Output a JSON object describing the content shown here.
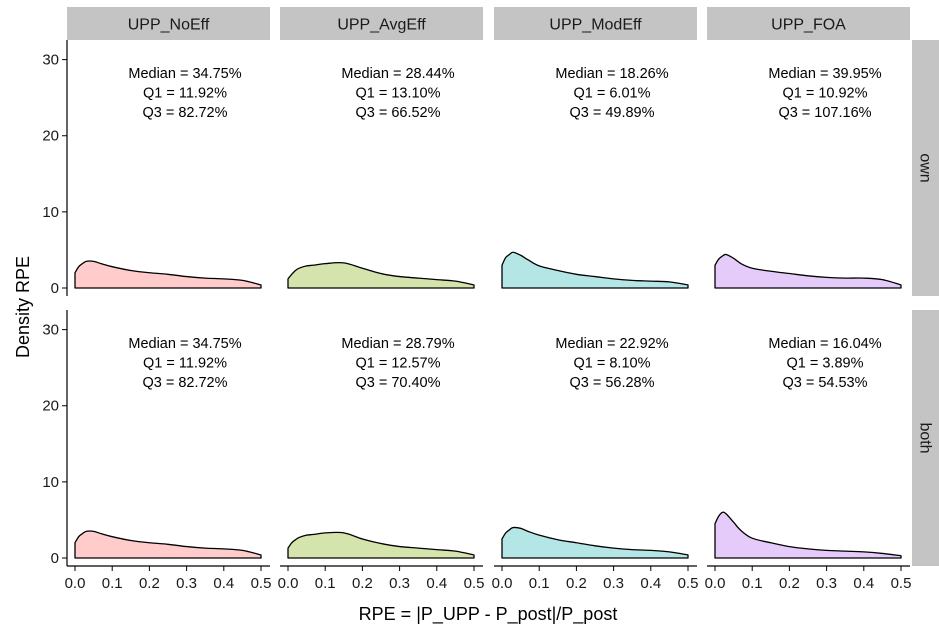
{
  "chart_data": {
    "type": "area",
    "xlabel": "RPE = |P_UPP - P_post|/P_post",
    "ylabel": "Density RPE",
    "xlim": [
      0,
      0.5
    ],
    "ylim": [
      0,
      31
    ],
    "x_ticks": [
      0.0,
      0.1,
      0.2,
      0.3,
      0.4,
      0.5
    ],
    "x_tick_labels": [
      "0.0",
      "0.1",
      "0.2",
      "0.3",
      "0.4",
      "0.5"
    ],
    "y_ticks": [
      0,
      10,
      20,
      30
    ],
    "y_tick_labels": [
      "0",
      "10",
      "20",
      "30"
    ],
    "grid": false,
    "legend": "none",
    "columns": [
      "UPP_NoEff",
      "UPP_AvgEff",
      "UPP_ModEff",
      "UPP_FOA"
    ],
    "rows": [
      "own",
      "both"
    ],
    "column_colors": [
      "#FFCCCB",
      "#D4E4AC",
      "#B4E6E5",
      "#E5CBFA"
    ],
    "outline_color": "#000000",
    "x": [
      0.0,
      0.01,
      0.02,
      0.03,
      0.05,
      0.07,
      0.1,
      0.15,
      0.2,
      0.25,
      0.3,
      0.35,
      0.4,
      0.45,
      0.5
    ],
    "panels": [
      {
        "row": "own",
        "column": "UPP_NoEff",
        "annotation": [
          "Median = 34.75%",
          "Q1 = 11.92%",
          "Q3 = 82.72%"
        ],
        "density": [
          2.0,
          2.8,
          3.2,
          3.5,
          3.5,
          3.2,
          2.8,
          2.3,
          2.0,
          1.8,
          1.5,
          1.3,
          1.2,
          1.0,
          0.4
        ]
      },
      {
        "row": "own",
        "column": "UPP_AvgEff",
        "annotation": [
          "Median = 28.44%",
          "Q1 = 13.10%",
          "Q3 = 66.52%"
        ],
        "density": [
          1.2,
          1.8,
          2.3,
          2.6,
          2.9,
          3.0,
          3.2,
          3.3,
          2.6,
          1.9,
          1.5,
          1.3,
          1.1,
          0.9,
          0.4
        ]
      },
      {
        "row": "own",
        "column": "UPP_ModEff",
        "annotation": [
          "Median = 18.26%",
          "Q1 = 6.01%",
          "Q3 = 49.89%"
        ],
        "density": [
          3.0,
          4.0,
          4.4,
          4.7,
          4.3,
          3.7,
          2.9,
          2.3,
          1.8,
          1.5,
          1.2,
          1.0,
          0.9,
          0.8,
          0.4
        ]
      },
      {
        "row": "own",
        "column": "UPP_FOA",
        "annotation": [
          "Median = 39.95%",
          "Q1 = 10.92%",
          "Q3 = 107.16%"
        ],
        "density": [
          3.0,
          3.8,
          4.2,
          4.4,
          3.9,
          3.2,
          2.6,
          2.2,
          1.9,
          1.6,
          1.4,
          1.3,
          1.3,
          1.1,
          0.4
        ]
      },
      {
        "row": "both",
        "column": "UPP_NoEff",
        "annotation": [
          "Median = 34.75%",
          "Q1 = 11.92%",
          "Q3 = 82.72%"
        ],
        "density": [
          2.0,
          2.8,
          3.2,
          3.5,
          3.5,
          3.2,
          2.8,
          2.3,
          2.0,
          1.8,
          1.5,
          1.3,
          1.2,
          1.0,
          0.4
        ]
      },
      {
        "row": "both",
        "column": "UPP_AvgEff",
        "annotation": [
          "Median = 28.79%",
          "Q1 = 12.57%",
          "Q3 = 70.40%"
        ],
        "density": [
          1.3,
          2.0,
          2.4,
          2.7,
          3.0,
          3.1,
          3.3,
          3.3,
          2.5,
          1.9,
          1.5,
          1.3,
          1.1,
          0.9,
          0.4
        ]
      },
      {
        "row": "both",
        "column": "UPP_ModEff",
        "annotation": [
          "Median = 22.92%",
          "Q1 = 8.10%",
          "Q3 = 56.28%"
        ],
        "density": [
          2.5,
          3.3,
          3.7,
          4.0,
          3.9,
          3.5,
          3.0,
          2.4,
          2.0,
          1.6,
          1.3,
          1.1,
          1.0,
          0.8,
          0.4
        ]
      },
      {
        "row": "both",
        "column": "UPP_FOA",
        "annotation": [
          "Median = 16.04%",
          "Q1 = 3.89%",
          "Q3 = 54.53%"
        ],
        "density": [
          4.5,
          5.5,
          6.0,
          5.8,
          4.7,
          3.6,
          2.6,
          2.0,
          1.5,
          1.2,
          1.0,
          0.9,
          0.8,
          0.6,
          0.3
        ]
      }
    ]
  }
}
